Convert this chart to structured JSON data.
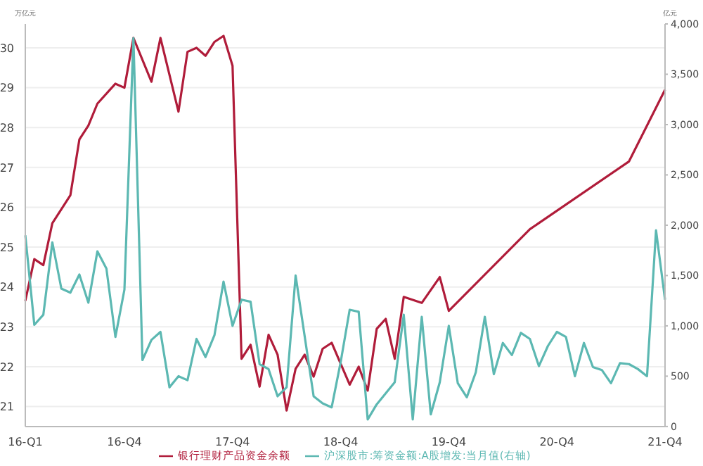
{
  "chart_data": {
    "type": "line",
    "ylabel": "万亿元",
    "y2label": "亿元",
    "categories": [
      "16-Q1",
      null,
      null,
      null,
      null,
      null,
      null,
      null,
      null,
      null,
      null,
      "16-Q4",
      null,
      null,
      null,
      null,
      null,
      null,
      null,
      null,
      null,
      null,
      null,
      "17-Q4",
      null,
      null,
      null,
      null,
      null,
      null,
      null,
      null,
      null,
      null,
      null,
      "18-Q4",
      null,
      null,
      null,
      null,
      null,
      null,
      null,
      null,
      null,
      null,
      null,
      "19-Q4",
      null,
      null,
      null,
      null,
      null,
      null,
      null,
      null,
      null,
      null,
      null,
      "20-Q4",
      null,
      null,
      null,
      null,
      null,
      null,
      null,
      null,
      null,
      null,
      null,
      "21-Q4"
    ],
    "series": [
      {
        "name": "银行理财产品资金余额",
        "color": "#b01c3a",
        "values": [
          23.65,
          24.7,
          24.55,
          25.6,
          null,
          26.3,
          27.7,
          28.05,
          28.6,
          null,
          29.1,
          29.0,
          30.25,
          null,
          29.15,
          30.25,
          null,
          28.4,
          29.9,
          30.0,
          29.8,
          30.15,
          30.3,
          29.55,
          22.2,
          22.55,
          21.5,
          22.8,
          22.3,
          20.9,
          21.95,
          22.3,
          21.75,
          22.45,
          22.6,
          null,
          21.55,
          22.0,
          21.4,
          22.95,
          23.2,
          22.2,
          23.75,
          null,
          23.6,
          null,
          24.25,
          23.4,
          null,
          null,
          null,
          null,
          null,
          null,
          null,
          null,
          25.45,
          null,
          null,
          null,
          null,
          null,
          null,
          null,
          null,
          null,
          null,
          27.15,
          null,
          null,
          null,
          28.95
        ]
      },
      {
        "name": "沪深股市:筹资金额:A股增发:当月值(右轴)",
        "color": "#5cb8b2",
        "axis": "y2",
        "values": [
          1900,
          1010,
          1110,
          1830,
          1370,
          1330,
          1510,
          1230,
          1740,
          1570,
          890,
          1360,
          3860,
          660,
          860,
          940,
          390,
          500,
          460,
          870,
          690,
          910,
          1440,
          1000,
          1260,
          1240,
          620,
          570,
          300,
          390,
          1500,
          900,
          300,
          230,
          190,
          640,
          1160,
          1140,
          70,
          220,
          330,
          440,
          1110,
          70,
          1090,
          120,
          440,
          1000,
          430,
          290,
          540,
          1090,
          520,
          830,
          710,
          930,
          870,
          600,
          800,
          940,
          890,
          500,
          830,
          590,
          560,
          430,
          630,
          620,
          570,
          500,
          1950,
          1260
        ]
      }
    ],
    "ylim": [
      20.5,
      30.6
    ],
    "yticks": [
      21,
      22,
      23,
      24,
      25,
      26,
      27,
      28,
      29,
      30
    ],
    "y2lim": [
      0,
      4000
    ],
    "y2ticks": [
      0,
      {
        "value": 500,
        "label": "500"
      },
      {
        "value": 1000,
        "label": "1,000"
      },
      {
        "value": 1500,
        "label": "1,500"
      },
      {
        "value": 2000,
        "label": "2,000"
      },
      {
        "value": 2500,
        "label": "2,500"
      },
      {
        "value": 3000,
        "label": "3,000"
      },
      {
        "value": 3500,
        "label": "3,500"
      },
      {
        "value": 4000,
        "label": "4,000"
      }
    ],
    "grid": "y",
    "legend": "bottom",
    "marker": "none",
    "line_style": "solid"
  }
}
